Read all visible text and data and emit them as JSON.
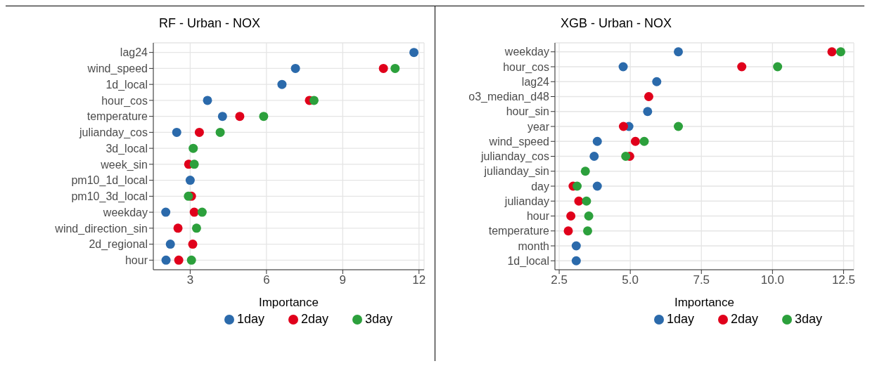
{
  "chart_data": [
    {
      "type": "scatter",
      "orientation": "horizontal",
      "title": "RF - Urban - NOX",
      "xlabel": "Importance",
      "categories": [
        "lag24",
        "wind_speed",
        "1d_local",
        "hour_cos",
        "temperature",
        "julianday_cos",
        "3d_local",
        "week_sin",
        "pm10_1d_local",
        "pm10_3d_local",
        "weekday",
        "wind_direction_sin",
        "2d_regional",
        "hour"
      ],
      "series": [
        {
          "name": "1day",
          "color": "#2b6aab",
          "values": [
            11.8,
            7.14,
            6.61,
            3.68,
            4.27,
            2.47,
            null,
            null,
            3.0,
            null,
            2.04,
            null,
            2.22,
            2.05
          ]
        },
        {
          "name": "2day",
          "color": "#e0001b",
          "values": [
            null,
            10.6,
            null,
            7.69,
            4.95,
            3.36,
            null,
            2.94,
            null,
            3.05,
            3.16,
            2.52,
            3.1,
            2.55
          ]
        },
        {
          "name": "3day",
          "color": "#2ca03c",
          "values": [
            null,
            11.06,
            null,
            7.87,
            5.89,
            4.18,
            3.12,
            3.16,
            null,
            2.93,
            3.47,
            3.25,
            null,
            3.05
          ]
        }
      ],
      "xlim": [
        1.55,
        12.2
      ],
      "xticks": [
        3,
        6,
        9,
        12
      ],
      "grid": true,
      "legend": "bottom",
      "marker": "circle"
    },
    {
      "type": "scatter",
      "orientation": "horizontal",
      "title": "XGB - Urban - NOX",
      "xlabel": "Importance",
      "categories": [
        "weekday",
        "hour_cos",
        "lag24",
        "o3_median_d48",
        "hour_sin",
        "year",
        "wind_speed",
        "julianday_cos",
        "julianday_sin",
        "day",
        "julianday",
        "hour",
        "temperature",
        "month",
        "1d_local"
      ],
      "series": [
        {
          "name": "1day",
          "color": "#2b6aab",
          "values": [
            6.69,
            4.75,
            5.93,
            null,
            5.61,
            4.95,
            3.84,
            3.73,
            null,
            3.84,
            null,
            null,
            null,
            3.1,
            3.1
          ]
        },
        {
          "name": "2day",
          "color": "#e0001b",
          "values": [
            12.09,
            8.92,
            null,
            5.65,
            null,
            4.76,
            5.18,
            4.98,
            null,
            2.99,
            3.19,
            2.91,
            2.82,
            null,
            null
          ]
        },
        {
          "name": "3day",
          "color": "#2ca03c",
          "values": [
            12.4,
            10.18,
            null,
            null,
            null,
            6.69,
            5.49,
            4.84,
            3.42,
            3.13,
            3.46,
            3.54,
            3.5,
            null,
            null
          ]
        }
      ],
      "xlim": [
        2.35,
        12.86
      ],
      "xticks": [
        2.5,
        {
          "value": 5,
          "label": "5.0"
        },
        7.5,
        {
          "value": 10,
          "label": "10.0"
        },
        12.5
      ],
      "grid": true,
      "legend": "bottom",
      "marker": "circle"
    }
  ]
}
